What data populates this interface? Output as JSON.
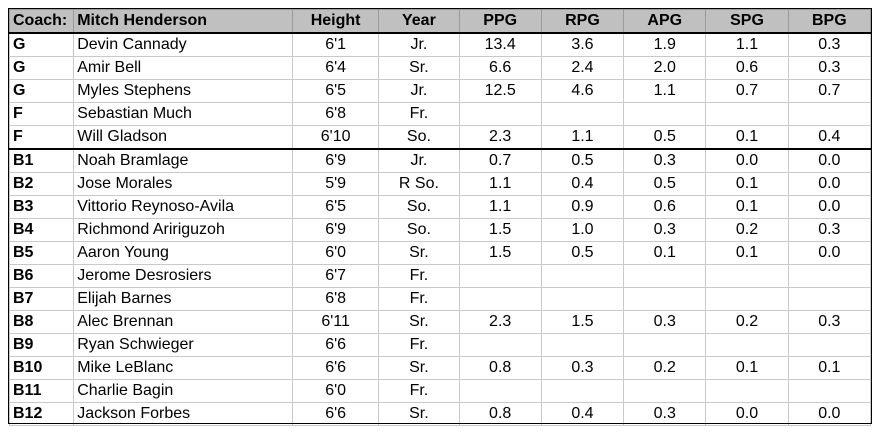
{
  "header": {
    "coach_label": "Coach:",
    "coach_name": "Mitch Henderson",
    "height": "Height",
    "year": "Year",
    "ppg": "PPG",
    "rpg": "RPG",
    "apg": "APG",
    "spg": "SPG",
    "bpg": "BPG"
  },
  "rows": [
    {
      "pos": "G",
      "name": "Devin Cannady",
      "height": "6'1",
      "year": "Jr.",
      "ppg": "13.4",
      "rpg": "3.6",
      "apg": "1.9",
      "spg": "1.1",
      "bpg": "0.3"
    },
    {
      "pos": "G",
      "name": "Amir Bell",
      "height": "6'4",
      "year": "Sr.",
      "ppg": "6.6",
      "rpg": "2.4",
      "apg": "2.0",
      "spg": "0.6",
      "bpg": "0.3"
    },
    {
      "pos": "G",
      "name": "Myles Stephens",
      "height": "6'5",
      "year": "Jr.",
      "ppg": "12.5",
      "rpg": "4.6",
      "apg": "1.1",
      "spg": "0.7",
      "bpg": "0.7"
    },
    {
      "pos": "F",
      "name": "Sebastian Much",
      "height": "6'8",
      "year": "Fr.",
      "ppg": "",
      "rpg": "",
      "apg": "",
      "spg": "",
      "bpg": ""
    },
    {
      "pos": "F",
      "name": "Will Gladson",
      "height": "6'10",
      "year": "So.",
      "ppg": "2.3",
      "rpg": "1.1",
      "apg": "0.5",
      "spg": "0.1",
      "bpg": "0.4"
    },
    {
      "pos": "B1",
      "name": "Noah Bramlage",
      "height": "6'9",
      "year": "Jr.",
      "ppg": "0.7",
      "rpg": "0.5",
      "apg": "0.3",
      "spg": "0.0",
      "bpg": "0.0"
    },
    {
      "pos": "B2",
      "name": "Jose Morales",
      "height": "5'9",
      "year": "R So.",
      "ppg": "1.1",
      "rpg": "0.4",
      "apg": "0.5",
      "spg": "0.1",
      "bpg": "0.0"
    },
    {
      "pos": "B3",
      "name": "Vittorio Reynoso-Avila",
      "height": "6'5",
      "year": "So.",
      "ppg": "1.1",
      "rpg": "0.9",
      "apg": "0.6",
      "spg": "0.1",
      "bpg": "0.0"
    },
    {
      "pos": "B4",
      "name": "Richmond Aririguzoh",
      "height": "6'9",
      "year": "So.",
      "ppg": "1.5",
      "rpg": "1.0",
      "apg": "0.3",
      "spg": "0.2",
      "bpg": "0.3"
    },
    {
      "pos": "B5",
      "name": "Aaron Young",
      "height": "6'0",
      "year": "Sr.",
      "ppg": "1.5",
      "rpg": "0.5",
      "apg": "0.1",
      "spg": "0.1",
      "bpg": "0.0"
    },
    {
      "pos": "B6",
      "name": "Jerome Desrosiers",
      "height": "6'7",
      "year": "Fr.",
      "ppg": "",
      "rpg": "",
      "apg": "",
      "spg": "",
      "bpg": ""
    },
    {
      "pos": "B7",
      "name": "Elijah Barnes",
      "height": "6'8",
      "year": "Fr.",
      "ppg": "",
      "rpg": "",
      "apg": "",
      "spg": "",
      "bpg": ""
    },
    {
      "pos": "B8",
      "name": "Alec Brennan",
      "height": "6'11",
      "year": "Sr.",
      "ppg": "2.3",
      "rpg": "1.5",
      "apg": "0.3",
      "spg": "0.2",
      "bpg": "0.3"
    },
    {
      "pos": "B9",
      "name": "Ryan Schwieger",
      "height": "6'6",
      "year": "Fr.",
      "ppg": "",
      "rpg": "",
      "apg": "",
      "spg": "",
      "bpg": ""
    },
    {
      "pos": "B10",
      "name": "Mike LeBlanc",
      "height": "6'6",
      "year": "Sr.",
      "ppg": "0.8",
      "rpg": "0.3",
      "apg": "0.2",
      "spg": "0.1",
      "bpg": "0.1"
    },
    {
      "pos": "B11",
      "name": "Charlie Bagin",
      "height": "6'0",
      "year": "Fr.",
      "ppg": "",
      "rpg": "",
      "apg": "",
      "spg": "",
      "bpg": ""
    },
    {
      "pos": "B12",
      "name": "Jackson Forbes",
      "height": "6'6",
      "year": "Sr.",
      "ppg": "0.8",
      "rpg": "0.4",
      "apg": "0.3",
      "spg": "0.0",
      "bpg": "0.0"
    }
  ]
}
